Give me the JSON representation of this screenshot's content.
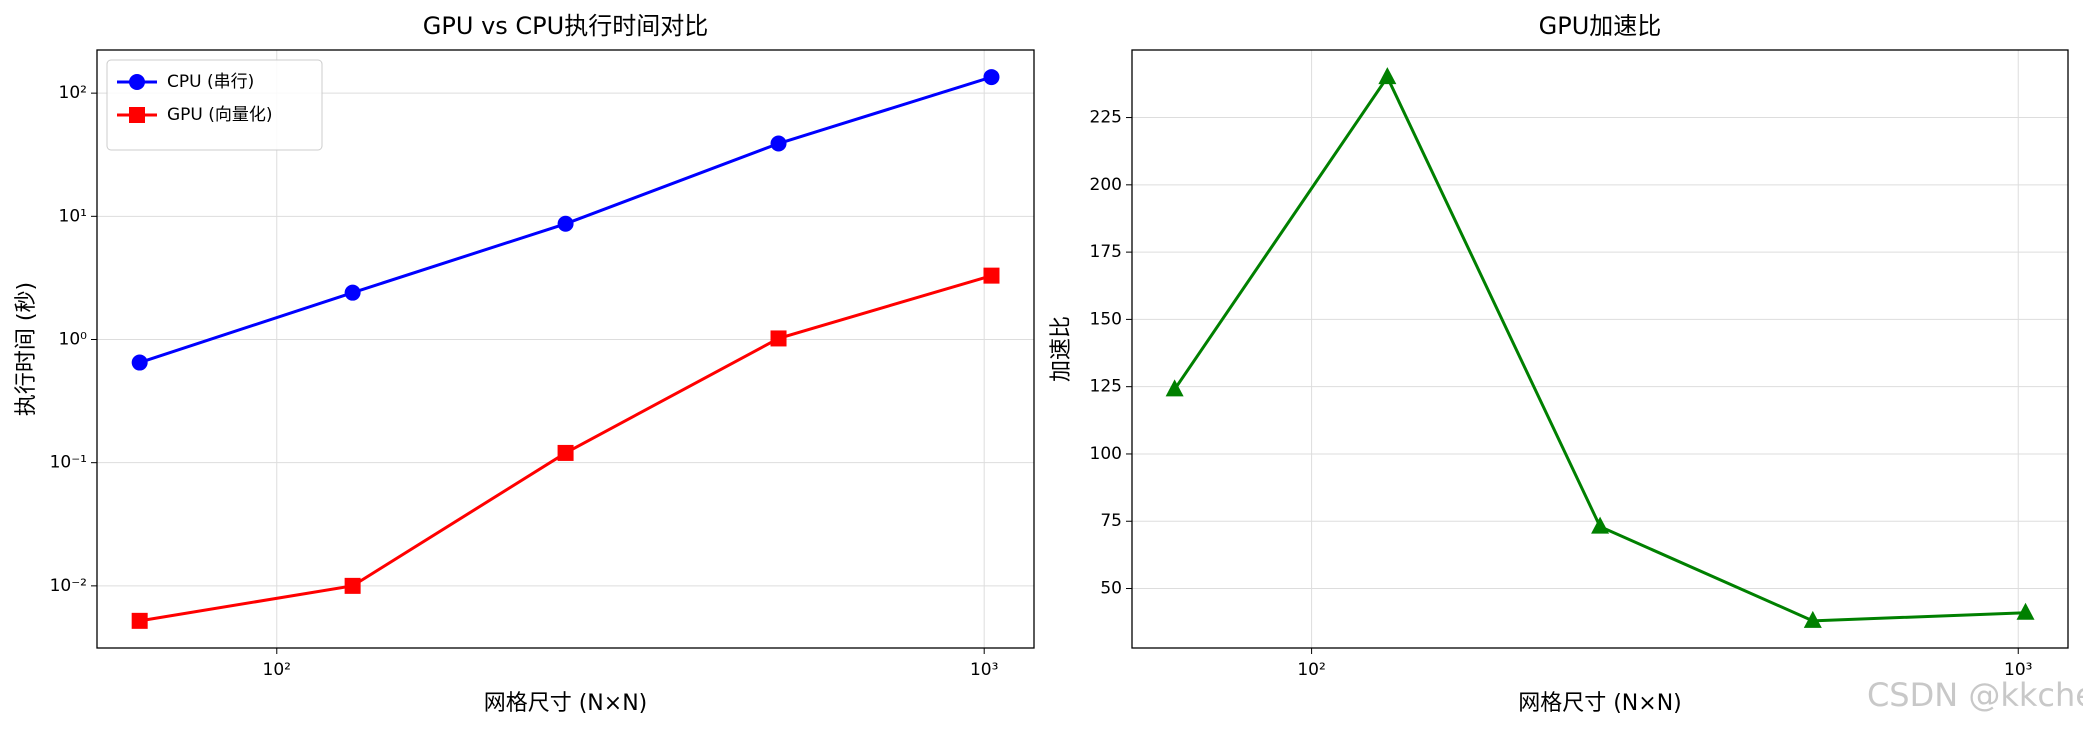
{
  "chart_data": [
    {
      "type": "line",
      "title": "GPU vs CPU执行时间对比",
      "x_label": "网格尺寸 (N×N)",
      "y_label": "执行时间 (秒)",
      "x": [
        64,
        128,
        256,
        512,
        1024
      ],
      "xscale": "log",
      "yscale": "log",
      "xlim": [
        55.7,
        1176
      ],
      "ylim": [
        0.00313,
        224
      ],
      "xticks": [
        {
          "value": 100,
          "label": "10²"
        },
        {
          "value": 1000,
          "label": "10³"
        }
      ],
      "yticks": [
        {
          "value": 0.01,
          "label": "10⁻²"
        },
        {
          "value": 0.1,
          "label": "10⁻¹"
        },
        {
          "value": 1,
          "label": "10⁰"
        },
        {
          "value": 10,
          "label": "10¹"
        },
        {
          "value": 100,
          "label": "10²"
        }
      ],
      "grid": true,
      "legend": "upper left",
      "series": [
        {
          "name": "CPU (串行)",
          "color": "#0000ff",
          "marker": "circle",
          "values": [
            0.65,
            2.4,
            8.7,
            39,
            135
          ]
        },
        {
          "name": "GPU (向量化)",
          "color": "#ff0000",
          "marker": "square",
          "values": [
            0.0052,
            0.01,
            0.12,
            1.02,
            3.3
          ]
        }
      ]
    },
    {
      "type": "line",
      "title": "GPU加速比",
      "x_label": "网格尺寸 (N×N)",
      "y_label": "加速比",
      "x": [
        64,
        128,
        256,
        512,
        1024
      ],
      "xscale": "log",
      "yscale": "linear",
      "xlim": [
        55.7,
        1176
      ],
      "ylim": [
        27.9,
        250.1
      ],
      "xticks": [
        {
          "value": 100,
          "label": "10²"
        },
        {
          "value": 1000,
          "label": "10³"
        }
      ],
      "yticks": [
        50,
        75,
        100,
        125,
        150,
        175,
        200,
        225
      ],
      "grid": true,
      "series": [
        {
          "name": "加速比",
          "color": "#008000",
          "marker": "triangle",
          "values": [
            124,
            240,
            73,
            38,
            41
          ]
        }
      ]
    }
  ],
  "watermark": "CSDN @kkchenjj"
}
